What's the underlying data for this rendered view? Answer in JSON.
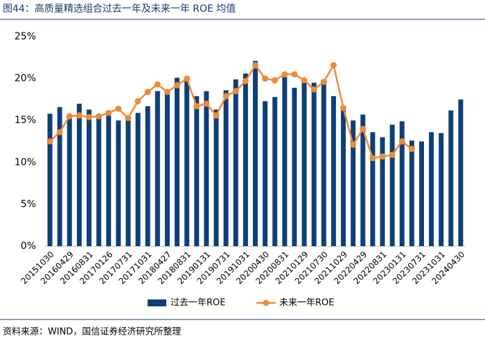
{
  "chart_data": {
    "type": "bar_line",
    "title": "图44：高质量精选组合过去一年及未来一年 ROE 均值",
    "source": "资料来源：WIND，国信证券经济研究所整理",
    "categories": [
      "20151030",
      null,
      "20160429",
      null,
      "20160831",
      null,
      "20170126",
      null,
      "20170731",
      null,
      "20171031",
      null,
      "20180427",
      null,
      "20180831",
      null,
      "20190131",
      null,
      "20190731",
      null,
      "20191031",
      null,
      "20200430",
      null,
      "20200831",
      null,
      "20210129",
      null,
      "20210730",
      null,
      "20211029",
      null,
      "20220429",
      null,
      "20220831",
      null,
      "20230131",
      null,
      "20230731",
      null,
      "20231031",
      null,
      "20240430"
    ],
    "series": [
      {
        "name": "过去一年ROE",
        "type": "bar",
        "color": "#0e3f77",
        "values": [
          15.8,
          16.6,
          15.5,
          17.0,
          16.3,
          15.3,
          15.6,
          15.0,
          15.1,
          15.9,
          16.7,
          18.5,
          18.3,
          20.1,
          19.7,
          17.9,
          18.5,
          16.3,
          18.6,
          19.9,
          20.6,
          22.1,
          17.3,
          17.8,
          20.2,
          18.9,
          19.9,
          19.5,
          19.5,
          17.9,
          16.5,
          15.0,
          15.7,
          13.6,
          13.0,
          14.5,
          14.9,
          12.6,
          12.5,
          13.6,
          13.5,
          16.2,
          17.5
        ]
      },
      {
        "name": "未来一年ROE",
        "type": "line",
        "color": "#ed8b3a",
        "values": [
          12.5,
          13.6,
          15.5,
          15.6,
          15.4,
          15.5,
          15.9,
          16.4,
          15.3,
          17.3,
          18.4,
          19.3,
          18.4,
          19.2,
          20.0,
          16.7,
          17.0,
          15.6,
          17.9,
          18.5,
          19.7,
          21.6,
          20.0,
          19.8,
          20.5,
          20.5,
          19.8,
          18.7,
          19.6,
          21.6,
          16.5,
          12.1,
          14.0,
          10.5,
          10.7,
          10.9,
          12.5,
          11.6,
          null,
          null,
          null,
          null,
          null
        ]
      }
    ],
    "ylim": [
      0,
      25
    ],
    "yticks": [
      {
        "value": 0,
        "label": "0%"
      },
      {
        "value": 5,
        "label": "5%"
      },
      {
        "value": 10,
        "label": "10%"
      },
      {
        "value": 15,
        "label": "15%"
      },
      {
        "value": 20,
        "label": "20%"
      },
      {
        "value": 25,
        "label": "25%"
      }
    ],
    "legend": "bottom"
  }
}
